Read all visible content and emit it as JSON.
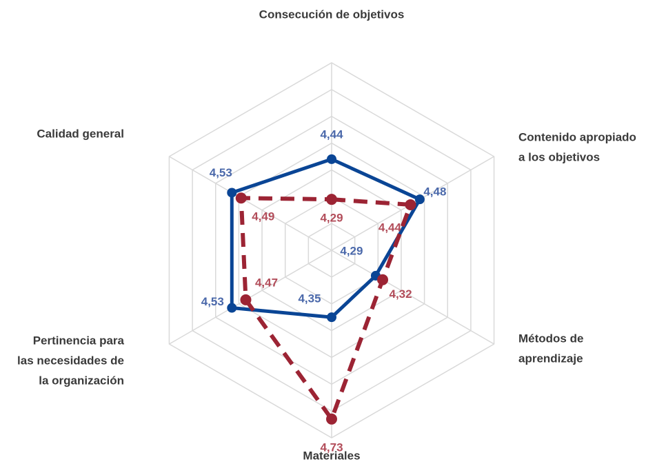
{
  "chart_data": {
    "type": "radar",
    "categories": [
      [
        "Consecución de objetivos"
      ],
      [
        "Contenido apropiado",
        "a los objetivos"
      ],
      [
        "Métodos de",
        "aprendizaje"
      ],
      [
        "Materiales"
      ],
      [
        "Pertinencia para",
        "las necesidades de",
        "la organización"
      ],
      [
        "Calidad general"
      ]
    ],
    "rlim": [
      4.1,
      4.8
    ],
    "rticks": [
      4.2,
      4.3,
      4.4,
      4.5,
      4.6,
      4.7,
      4.8
    ],
    "grid": true,
    "series": [
      {
        "color": "#0a4595",
        "label_color": "#4a68aa",
        "line_style": "solid",
        "values": [
          4.44,
          4.48,
          4.29,
          4.35,
          4.53,
          4.53
        ],
        "value_labels": [
          "4,44",
          "4,48",
          "4,29",
          "4,35",
          "4,53",
          "4,53"
        ]
      },
      {
        "color": "#9c2434",
        "label_color": "#b24d5a",
        "line_style": "dashed",
        "values": [
          4.29,
          4.44,
          4.32,
          4.73,
          4.47,
          4.49
        ],
        "value_labels": [
          "4,29",
          "4,44",
          "4,32",
          "4,73",
          "4,47",
          "4,49"
        ]
      }
    ]
  }
}
